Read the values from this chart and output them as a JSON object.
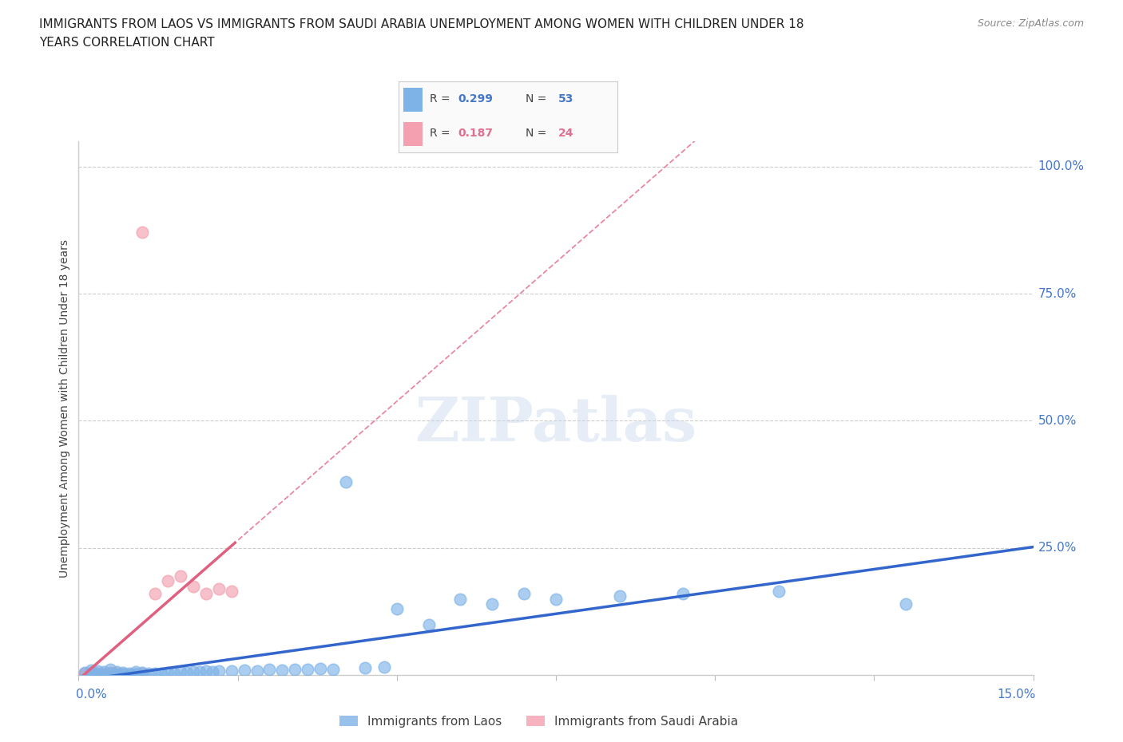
{
  "title_line1": "IMMIGRANTS FROM LAOS VS IMMIGRANTS FROM SAUDI ARABIA UNEMPLOYMENT AMONG WOMEN WITH CHILDREN UNDER 18",
  "title_line2": "YEARS CORRELATION CHART",
  "source": "Source: ZipAtlas.com",
  "ylabel": "Unemployment Among Women with Children Under 18 years",
  "xlim": [
    0.0,
    0.15
  ],
  "ylim": [
    0.0,
    1.05
  ],
  "ytick_values": [
    0.0,
    0.25,
    0.5,
    0.75,
    1.0
  ],
  "color_laos": "#7EB3E8",
  "color_saudi": "#F4A0B0",
  "color_blue_text": "#4477CC",
  "color_pink_text": "#E07090",
  "color_laos_line": "#3366CC",
  "color_saudi_line": "#E06080",
  "R_laos": 0.299,
  "N_laos": 53,
  "R_saudi": 0.187,
  "N_saudi": 24,
  "laos_x": [
    0.001,
    0.002,
    0.002,
    0.003,
    0.003,
    0.004,
    0.004,
    0.005,
    0.005,
    0.006,
    0.006,
    0.007,
    0.007,
    0.008,
    0.008,
    0.009,
    0.009,
    0.01,
    0.01,
    0.011,
    0.012,
    0.013,
    0.014,
    0.015,
    0.016,
    0.017,
    0.018,
    0.019,
    0.02,
    0.021,
    0.022,
    0.024,
    0.026,
    0.028,
    0.03,
    0.032,
    0.034,
    0.036,
    0.038,
    0.04,
    0.042,
    0.045,
    0.048,
    0.05,
    0.055,
    0.06,
    0.065,
    0.07,
    0.075,
    0.085,
    0.095,
    0.11,
    0.13
  ],
  "laos_y": [
    0.005,
    0.003,
    0.01,
    0.002,
    0.008,
    0.001,
    0.006,
    0.003,
    0.012,
    0.001,
    0.007,
    0.002,
    0.005,
    0.001,
    0.004,
    0.002,
    0.006,
    0.001,
    0.005,
    0.003,
    0.004,
    0.003,
    0.005,
    0.004,
    0.006,
    0.005,
    0.007,
    0.006,
    0.008,
    0.007,
    0.009,
    0.008,
    0.01,
    0.009,
    0.011,
    0.01,
    0.012,
    0.011,
    0.013,
    0.012,
    0.38,
    0.015,
    0.016,
    0.13,
    0.1,
    0.15,
    0.14,
    0.16,
    0.15,
    0.155,
    0.16,
    0.165,
    0.14
  ],
  "saudi_x": [
    0.001,
    0.001,
    0.002,
    0.002,
    0.003,
    0.003,
    0.004,
    0.004,
    0.005,
    0.005,
    0.006,
    0.006,
    0.007,
    0.008,
    0.009,
    0.01,
    0.012,
    0.014,
    0.016,
    0.018,
    0.02,
    0.022,
    0.024,
    0.01
  ],
  "saudi_y": [
    0.001,
    0.003,
    0.001,
    0.005,
    0.002,
    0.004,
    0.001,
    0.003,
    0.002,
    0.005,
    0.001,
    0.003,
    0.002,
    0.001,
    0.002,
    0.003,
    0.16,
    0.185,
    0.195,
    0.175,
    0.16,
    0.17,
    0.165,
    0.87
  ],
  "watermark": "ZIPatlas",
  "bg_color": "#FFFFFF",
  "grid_color": "#CCCCCC"
}
